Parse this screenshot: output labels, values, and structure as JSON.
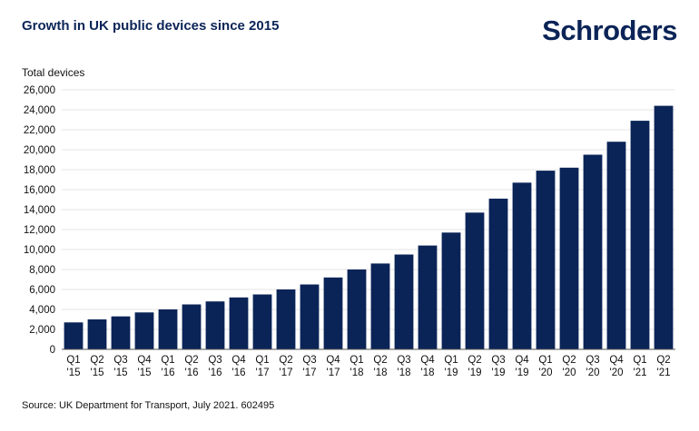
{
  "header": {
    "title": "Growth in UK public devices since 2015",
    "logo_text": "Schroders"
  },
  "footer": {
    "source": "Source: UK Department for Transport, July 2021. 602495"
  },
  "colors": {
    "bar": "#0b2457",
    "title": "#0b2457",
    "grid": "#e6e6e6"
  },
  "chart_data": {
    "type": "bar",
    "title": "Growth in UK public devices since 2015",
    "ylabel": "Total devices",
    "xlabel": "",
    "ylim": [
      0,
      26000
    ],
    "ytick_step": 2000,
    "grid": true,
    "categories": [
      [
        "Q1",
        "'15"
      ],
      [
        "Q2",
        "'15"
      ],
      [
        "Q3",
        "'15"
      ],
      [
        "Q4",
        "'15"
      ],
      [
        "Q1",
        "'16"
      ],
      [
        "Q2",
        "'16"
      ],
      [
        "Q3",
        "'16"
      ],
      [
        "Q4",
        "'16"
      ],
      [
        "Q1",
        "'17"
      ],
      [
        "Q2",
        "'17"
      ],
      [
        "Q3",
        "'17"
      ],
      [
        "Q4",
        "'17"
      ],
      [
        "Q1",
        "'18"
      ],
      [
        "Q2",
        "'18"
      ],
      [
        "Q3",
        "'18"
      ],
      [
        "Q4",
        "'18"
      ],
      [
        "Q1",
        "'19"
      ],
      [
        "Q2",
        "'19"
      ],
      [
        "Q3",
        "'19"
      ],
      [
        "Q4",
        "'19"
      ],
      [
        "Q1",
        "'20"
      ],
      [
        "Q2",
        "'20"
      ],
      [
        "Q3",
        "'20"
      ],
      [
        "Q4",
        "'20"
      ],
      [
        "Q1",
        "'21"
      ],
      [
        "Q2",
        "'21"
      ]
    ],
    "values": [
      2700,
      3000,
      3300,
      3700,
      4000,
      4500,
      4800,
      5200,
      5500,
      6000,
      6500,
      7200,
      8000,
      8600,
      9500,
      10400,
      11700,
      13700,
      15100,
      16700,
      17900,
      18200,
      19500,
      20800,
      22900,
      24400
    ]
  }
}
